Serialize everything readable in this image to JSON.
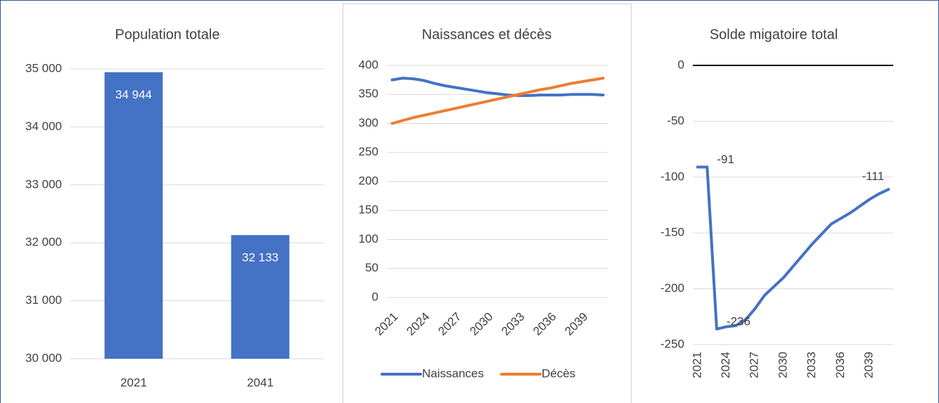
{
  "chart_data": [
    {
      "type": "bar",
      "title": "Population totale",
      "categories": [
        "2021",
        "2041"
      ],
      "values": [
        34944,
        32133
      ],
      "value_labels": [
        "34 944",
        "32 133"
      ],
      "color": "#4472c4",
      "ylim": [
        30000,
        35000
      ],
      "yticks": [
        {
          "value": 30000,
          "label": "30 000"
        },
        {
          "value": 31000,
          "label": "31 000"
        },
        {
          "value": 32000,
          "label": "32 000"
        },
        {
          "value": 33000,
          "label": "33 000"
        },
        {
          "value": 34000,
          "label": "34 000"
        },
        {
          "value": 35000,
          "label": "35 000"
        }
      ],
      "grid": true
    },
    {
      "type": "line",
      "title": "Naissances et décès",
      "categories": [
        "2021",
        null,
        null,
        "2024",
        null,
        null,
        "2027",
        null,
        null,
        "2030",
        null,
        null,
        "2033",
        null,
        null,
        "2036",
        null,
        null,
        "2039",
        null,
        null
      ],
      "series": [
        {
          "name": "Naissances",
          "color": "#4472c4",
          "values": [
            375,
            378,
            377,
            374,
            369,
            365,
            362,
            359,
            356,
            353,
            351,
            349,
            348,
            348,
            349,
            349,
            349,
            350,
            350,
            350,
            349
          ]
        },
        {
          "name": "Décès",
          "color": "#ed7d31",
          "values": [
            300,
            305,
            310,
            314,
            318,
            322,
            326,
            330,
            334,
            338,
            342,
            346,
            350,
            354,
            358,
            361,
            365,
            369,
            372,
            375,
            378
          ]
        }
      ],
      "ylim": [
        0,
        400
      ],
      "yticks": [
        0,
        50,
        100,
        150,
        200,
        250,
        300,
        350,
        400
      ],
      "grid": true,
      "legend": "bottom"
    },
    {
      "type": "line",
      "title": "Solde migatoire total",
      "categories": [
        "2021",
        null,
        null,
        "2024",
        null,
        null,
        "2027",
        null,
        null,
        "2030",
        null,
        null,
        "2033",
        null,
        null,
        "2036",
        null,
        null,
        "2039",
        null,
        null
      ],
      "series": [
        {
          "name": "Solde migatoire total",
          "color": "#4472c4",
          "values": [
            -91,
            -91,
            -236,
            -234,
            -233,
            -228,
            -218,
            -206,
            -198,
            -190,
            -180,
            -170,
            -160,
            -151,
            -142,
            -137,
            -132,
            -126,
            -120,
            -115,
            -111
          ],
          "value_labels": [
            null,
            "-91",
            "-236",
            null,
            null,
            null,
            null,
            null,
            null,
            null,
            null,
            null,
            null,
            null,
            null,
            null,
            null,
            null,
            null,
            null,
            "-111"
          ]
        }
      ],
      "ylim": [
        -250,
        0
      ],
      "yticks": [
        -250,
        -200,
        -150,
        -100,
        -50,
        0
      ],
      "grid": true,
      "zero_line_color": "#000000"
    }
  ]
}
